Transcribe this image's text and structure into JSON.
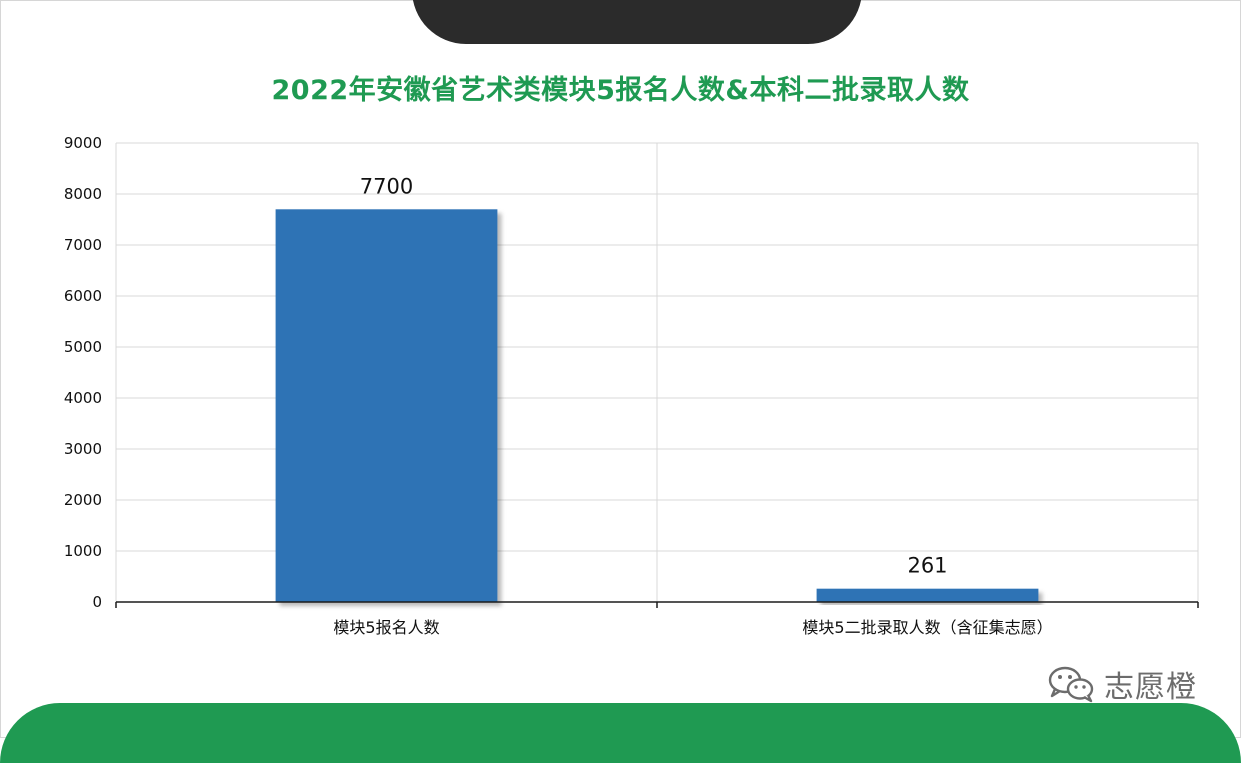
{
  "chart_data": {
    "type": "bar",
    "title": "2022年安徽省艺术类模块5报名人数&本科二批录取人数",
    "categories": [
      "模块5报名人数",
      "模块5二批录取人数（含征集志愿）"
    ],
    "values": [
      7700,
      261
    ],
    "data_labels": [
      "7700",
      "261"
    ],
    "yticks": [
      "0",
      "1000",
      "2000",
      "3000",
      "4000",
      "5000",
      "6000",
      "7000",
      "8000",
      "9000"
    ],
    "ylim": [
      0,
      9000
    ],
    "grid": true,
    "legend": "none",
    "bar_color": "#2e73b5",
    "title_color": "#1f9a52"
  },
  "watermark": {
    "text": "志愿橙",
    "icon": "wechat-icon"
  }
}
